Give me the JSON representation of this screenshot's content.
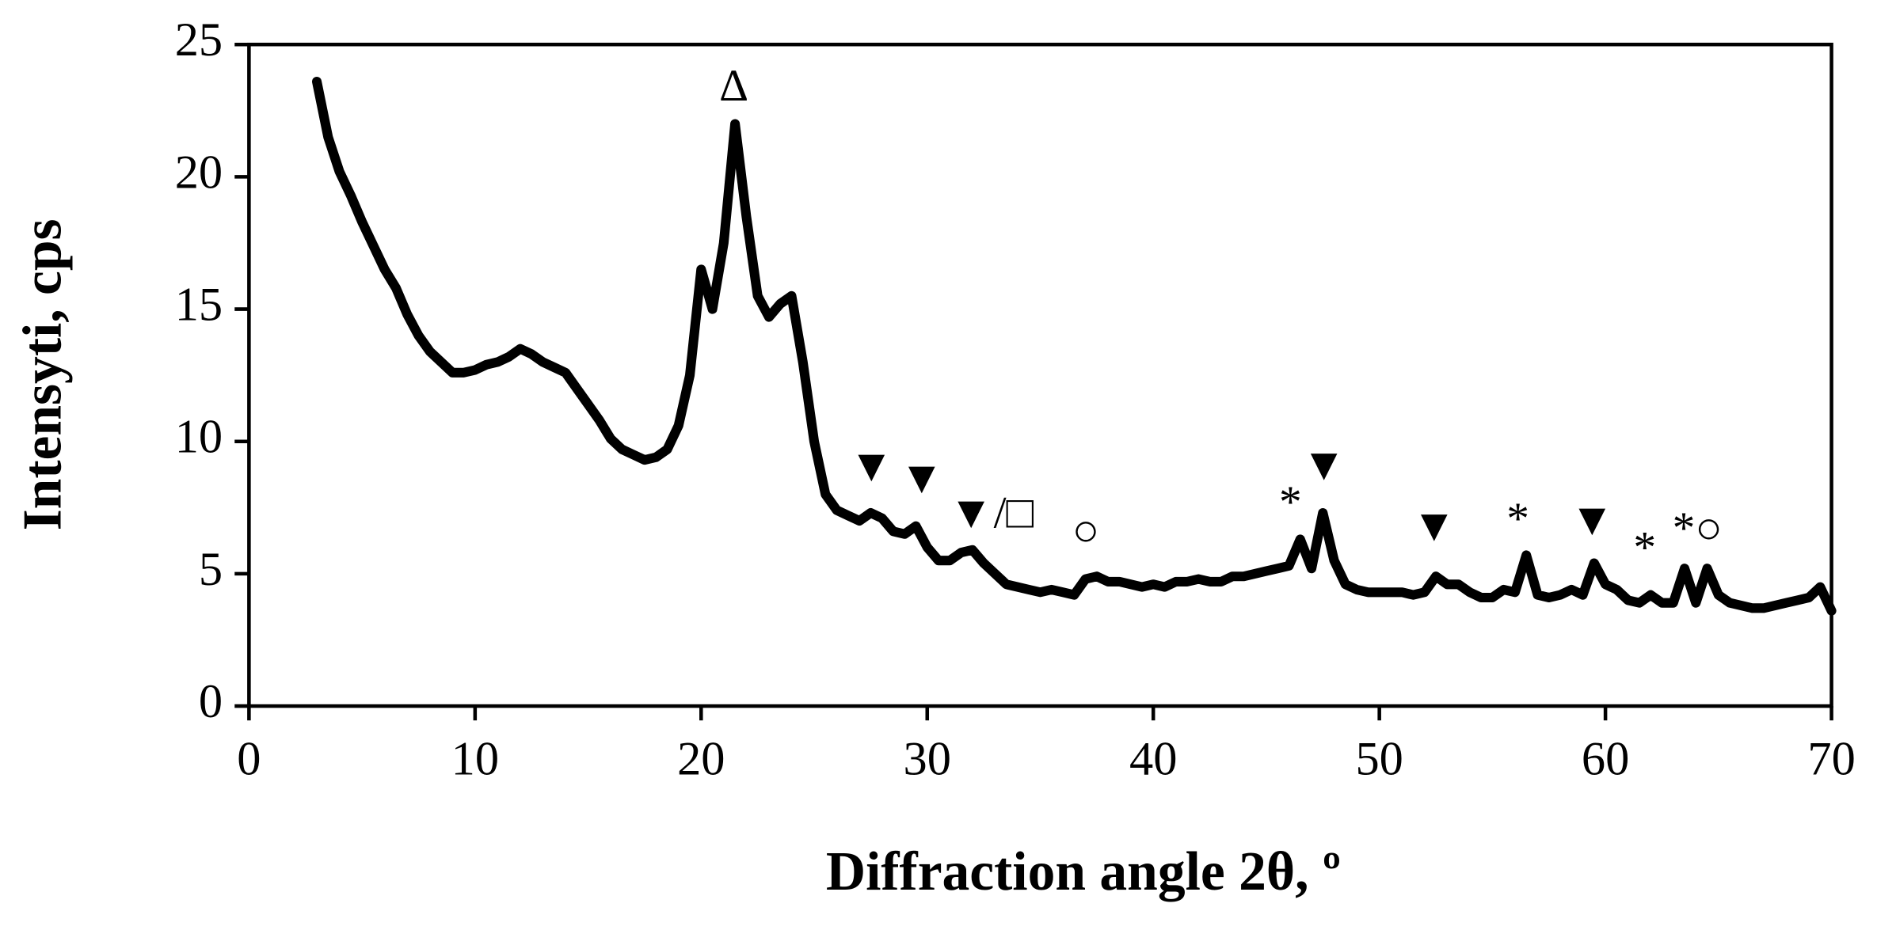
{
  "chart_data": {
    "type": "line",
    "x_label": "Diffraction angle 2θ, º",
    "y_label": "Intensyti, cps",
    "x": [
      3,
      3.5,
      4,
      4.5,
      5,
      5.5,
      6,
      6.5,
      7,
      7.5,
      8,
      8.5,
      9,
      9.5,
      10,
      10.5,
      11,
      11.5,
      12,
      12.5,
      13,
      13.5,
      14,
      14.5,
      15,
      15.5,
      16,
      16.5,
      17,
      17.5,
      18,
      18.5,
      19,
      19.5,
      20,
      20.5,
      21,
      21.5,
      22,
      22.5,
      23,
      23.5,
      24,
      24.5,
      25,
      25.5,
      26,
      26.5,
      27,
      27.5,
      28,
      28.5,
      29,
      29.5,
      30,
      30.5,
      31,
      31.5,
      32,
      32.5,
      33,
      33.5,
      34,
      34.5,
      35,
      35.5,
      36,
      36.5,
      37,
      37.5,
      38,
      38.5,
      39,
      39.5,
      40,
      40.5,
      41,
      41.5,
      42,
      42.5,
      43,
      43.5,
      44,
      44.5,
      45,
      45.5,
      46,
      46.5,
      47,
      47.5,
      48,
      48.5,
      49,
      49.5,
      50,
      50.5,
      51,
      51.5,
      52,
      52.5,
      53,
      53.5,
      54,
      54.5,
      55,
      55.5,
      56,
      56.5,
      57,
      57.5,
      58,
      58.5,
      59,
      59.5,
      60,
      60.5,
      61,
      61.5,
      62,
      62.5,
      63,
      63.5,
      64,
      64.5,
      65,
      65.5,
      66,
      66.5,
      67,
      67.5,
      68,
      68.5,
      69,
      69.5,
      70
    ],
    "series": [
      {
        "name": "XRD",
        "color": "#000000",
        "values": [
          23.6,
          21.5,
          20.2,
          19.3,
          18.3,
          17.4,
          16.5,
          15.8,
          14.8,
          14.0,
          13.4,
          13.0,
          12.6,
          12.6,
          12.7,
          12.9,
          13.0,
          13.2,
          13.5,
          13.3,
          13.0,
          12.8,
          12.6,
          12.0,
          11.4,
          10.8,
          10.1,
          9.7,
          9.5,
          9.3,
          9.4,
          9.7,
          10.6,
          12.5,
          16.5,
          15.0,
          17.5,
          22.0,
          18.5,
          15.5,
          14.7,
          15.2,
          15.5,
          13.0,
          10.0,
          8.0,
          7.4,
          7.2,
          7.0,
          7.3,
          7.1,
          6.6,
          6.5,
          6.8,
          6.0,
          5.5,
          5.5,
          5.8,
          5.9,
          5.4,
          5.0,
          4.6,
          4.5,
          4.4,
          4.3,
          4.4,
          4.3,
          4.2,
          4.8,
          4.9,
          4.7,
          4.7,
          4.6,
          4.5,
          4.6,
          4.5,
          4.7,
          4.7,
          4.8,
          4.7,
          4.7,
          4.9,
          4.9,
          5.0,
          5.1,
          5.2,
          5.3,
          6.3,
          5.2,
          7.3,
          5.5,
          4.6,
          4.4,
          4.3,
          4.3,
          4.3,
          4.3,
          4.2,
          4.3,
          4.9,
          4.6,
          4.6,
          4.3,
          4.1,
          4.1,
          4.4,
          4.3,
          5.7,
          4.2,
          4.1,
          4.2,
          4.4,
          4.2,
          5.4,
          4.6,
          4.4,
          4.0,
          3.9,
          4.2,
          3.9,
          3.9,
          5.2,
          3.9,
          5.2,
          4.2,
          3.9,
          3.8,
          3.7,
          3.7,
          3.8,
          3.9,
          4.0,
          4.1,
          4.5,
          3.6
        ]
      }
    ],
    "xlim": [
      0,
      70
    ],
    "xticks": [
      0,
      10,
      20,
      30,
      40,
      50,
      60,
      70
    ],
    "ylim": [
      0,
      25
    ],
    "yticks": [
      0,
      5,
      10,
      15,
      20,
      25
    ],
    "annotations": [
      "Δ",
      "▼",
      "▼",
      "▼/□",
      "○",
      "*",
      "▼",
      "▼",
      "*",
      "▼",
      "*",
      "*○"
    ]
  }
}
